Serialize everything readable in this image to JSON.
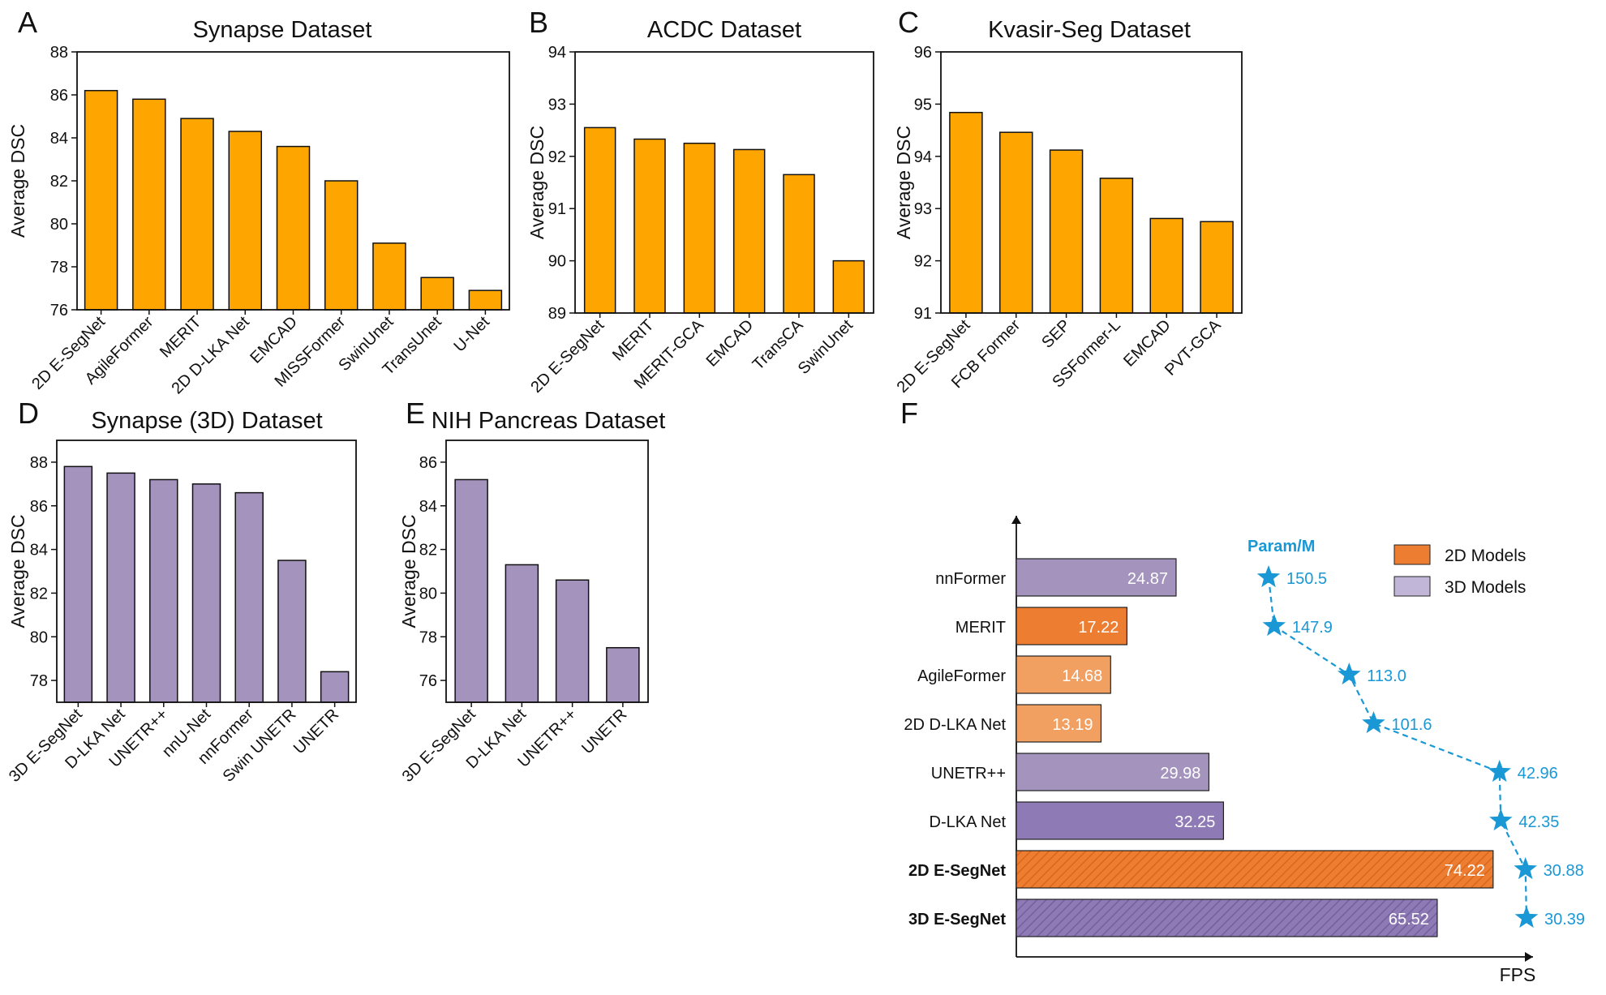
{
  "colors": {
    "orange": "#ffa500",
    "purple": "#a393bd",
    "orange2d": "#ed7d31",
    "orange2dLight": "#f2a062",
    "purple3d": "#8e7ab5",
    "paramBlue": "#1a98d5"
  },
  "chart_data": [
    {
      "panel": "A",
      "type": "bar",
      "title": "Synapse Dataset",
      "ylabel": "Average DSC",
      "categories": [
        "2D E-SegNet",
        "AgileFormer",
        "MERIT",
        "2D D-LKA Net",
        "EMCAD",
        "MISSFormer",
        "SwinUnet",
        "TransUnet",
        "U-Net"
      ],
      "values": [
        86.2,
        85.8,
        84.9,
        84.3,
        83.6,
        82.0,
        79.1,
        77.5,
        76.9
      ],
      "ylim": [
        76,
        88
      ],
      "yticks": [
        76,
        78,
        80,
        82,
        84,
        86,
        88
      ],
      "color": "orange"
    },
    {
      "panel": "B",
      "type": "bar",
      "title": "ACDC Dataset",
      "ylabel": "Average DSC",
      "categories": [
        "2D E-SegNet",
        "MERIT",
        "MERIT-GCA",
        "EMCAD",
        "TransCA",
        "SwinUnet"
      ],
      "values": [
        92.55,
        92.33,
        92.25,
        92.13,
        91.65,
        90.0
      ],
      "ylim": [
        89,
        94
      ],
      "yticks": [
        89,
        90,
        91,
        92,
        93,
        94
      ],
      "color": "orange"
    },
    {
      "panel": "C",
      "type": "bar",
      "title": "Kvasir-Seg Dataset",
      "ylabel": "Average DSC",
      "categories": [
        "2D E-SegNet",
        "FCB Former",
        "SEP",
        "SSFormer-L",
        "EMCAD",
        "PVT-GCA"
      ],
      "values": [
        94.84,
        94.46,
        94.12,
        93.58,
        92.81,
        92.75
      ],
      "ylim": [
        91,
        96
      ],
      "yticks": [
        91,
        92,
        93,
        94,
        95,
        96
      ],
      "color": "orange"
    },
    {
      "panel": "D",
      "type": "bar",
      "title": "Synapse (3D) Dataset",
      "ylabel": "Average DSC",
      "categories": [
        "3D E-SegNet",
        "D-LKA Net",
        "UNETR++",
        "nnU-Net",
        "nnFormer",
        "Swin UNETR",
        "UNETR"
      ],
      "values": [
        87.8,
        87.5,
        87.2,
        87.0,
        86.6,
        83.5,
        78.4
      ],
      "ylim": [
        77,
        89
      ],
      "yticks": [
        78,
        80,
        82,
        84,
        86,
        88
      ],
      "color": "purple"
    },
    {
      "panel": "E",
      "type": "bar",
      "title": "NIH Pancreas Dataset",
      "ylabel": "Average DSC",
      "categories": [
        "3D E-SegNet",
        "D-LKA Net",
        "UNETR++",
        "UNETR"
      ],
      "values": [
        85.2,
        81.3,
        80.6,
        77.5
      ],
      "ylim": [
        75,
        87
      ],
      "yticks": [
        76,
        78,
        80,
        82,
        84,
        86
      ],
      "color": "purple"
    },
    {
      "panel": "F",
      "type": "bar",
      "orientation": "horizontal",
      "xlabel": "FPS",
      "param_title": "Param/M",
      "legend": [
        "2D Models",
        "3D Models"
      ],
      "categories": [
        "nnFormer",
        "MERIT",
        "AgileFormer",
        "2D D-LKA Net",
        "UNETR++",
        "D-LKA Net",
        "2D E-SegNet",
        "3D E-SegNet"
      ],
      "bold": [
        false,
        false,
        false,
        false,
        false,
        false,
        true,
        true
      ],
      "fps": [
        24.87,
        17.22,
        14.68,
        13.19,
        29.98,
        32.25,
        74.22,
        65.52
      ],
      "fps_labels": [
        "24.87",
        "17.22",
        "14.68",
        "13.19",
        "29.98",
        "32.25",
        "74.22",
        "65.52"
      ],
      "model_type": [
        "3D",
        "2D",
        "2D",
        "2D",
        "3D",
        "3D",
        "2D",
        "3D"
      ],
      "params": [
        150.5,
        147.9,
        113.0,
        101.6,
        42.96,
        42.35,
        30.88,
        30.39
      ],
      "param_labels": [
        "150.5",
        "147.9",
        "113.0",
        "101.6",
        "42.96",
        "42.35",
        "30.88",
        "30.39"
      ]
    }
  ]
}
